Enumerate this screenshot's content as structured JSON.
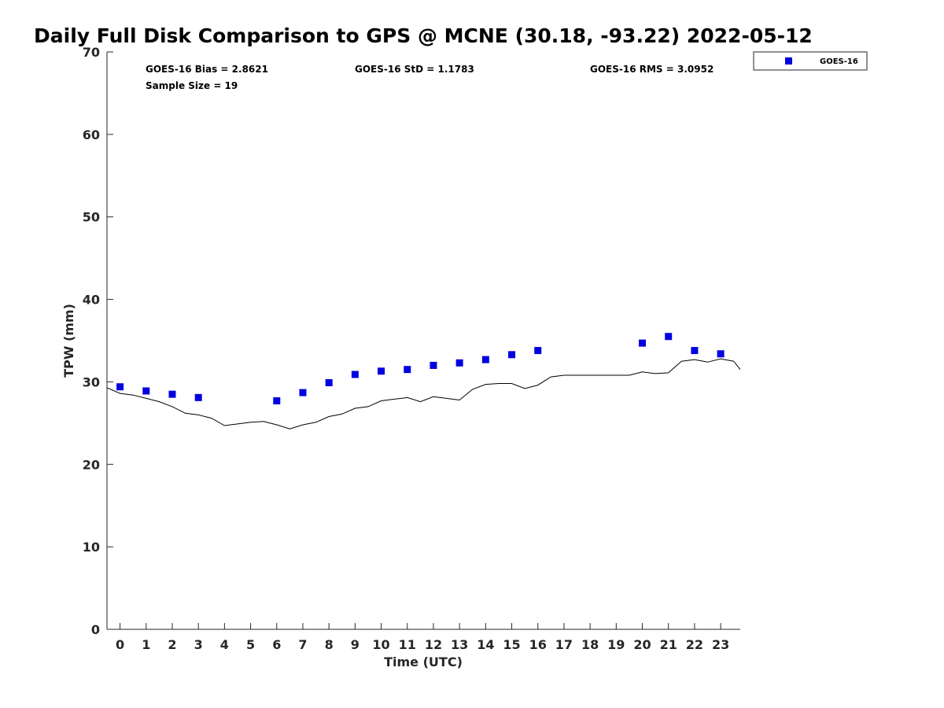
{
  "chart_data": {
    "type": "scatter",
    "title": "Daily Full Disk Comparison to GPS @ MCNE (30.18, -93.22) 2022-05-12",
    "xlabel": "Time (UTC)",
    "ylabel": "TPW (mm)",
    "xlim": [
      -0.5,
      23.75
    ],
    "ylim": [
      0,
      70
    ],
    "x_ticks": [
      0,
      1,
      2,
      3,
      4,
      5,
      6,
      7,
      8,
      9,
      10,
      11,
      12,
      13,
      14,
      15,
      16,
      17,
      18,
      19,
      20,
      21,
      22,
      23
    ],
    "x_tick_labels": [
      "0",
      "1",
      "2",
      "3",
      "4",
      "5",
      "6",
      "7",
      "8",
      "9",
      "10",
      "11",
      "12",
      "13",
      "14",
      "15",
      "16",
      "17",
      "18",
      "19",
      "20",
      "21",
      "22",
      "23"
    ],
    "y_ticks": [
      0,
      10,
      20,
      30,
      40,
      50,
      60,
      70
    ],
    "y_tick_labels": [
      "0",
      "10",
      "20",
      "30",
      "40",
      "50",
      "60",
      "70"
    ],
    "grid": false,
    "legend_position": "top-right-outside",
    "stats": {
      "bias": "GOES-16 Bias = 2.8621",
      "std": "GOES-16 StD = 1.1783",
      "rms": "GOES-16 RMS = 3.0952",
      "sample_size": "Sample Size = 19"
    },
    "series": [
      {
        "name": "GOES-16",
        "type": "scatter",
        "color": "#0000e0",
        "marker": "square",
        "x": [
          0,
          1,
          2,
          3,
          6,
          7,
          8,
          9,
          10,
          11,
          12,
          13,
          14,
          15,
          16,
          20,
          21,
          22,
          23
        ],
        "y": [
          29.4,
          28.9,
          28.5,
          28.1,
          27.7,
          28.7,
          29.9,
          30.9,
          31.3,
          31.5,
          32.0,
          32.3,
          32.7,
          33.3,
          33.8,
          34.7,
          35.5,
          33.8,
          33.4
        ]
      },
      {
        "type": "line",
        "color": "#000000",
        "x": [
          -0.5,
          0,
          0.5,
          1,
          1.5,
          2,
          2.5,
          3,
          3.5,
          4,
          4.5,
          5,
          5.5,
          6,
          6.5,
          7,
          7.5,
          8,
          8.5,
          9,
          9.5,
          10,
          10.5,
          11,
          11.5,
          12,
          12.5,
          13,
          13.5,
          14,
          14.5,
          15,
          15.5,
          16,
          16.5,
          17,
          17.5,
          18,
          18.5,
          19,
          19.5,
          20,
          20.5,
          21,
          21.5,
          22,
          22.5,
          23,
          23.5,
          23.75
        ],
        "y": [
          29.3,
          28.6,
          28.4,
          28.0,
          27.6,
          27.0,
          26.2,
          26.0,
          25.6,
          24.7,
          24.9,
          25.1,
          25.2,
          24.8,
          24.3,
          24.8,
          25.1,
          25.8,
          26.1,
          26.8,
          27.0,
          27.7,
          27.9,
          28.1,
          27.6,
          28.2,
          28.0,
          27.8,
          29.1,
          29.7,
          29.8,
          29.8,
          29.2,
          29.6,
          30.6,
          30.8,
          30.8,
          30.8,
          30.8,
          30.8,
          30.8,
          31.2,
          31.0,
          31.1,
          32.5,
          32.7,
          32.4,
          32.8,
          32.5,
          31.5
        ]
      }
    ]
  }
}
